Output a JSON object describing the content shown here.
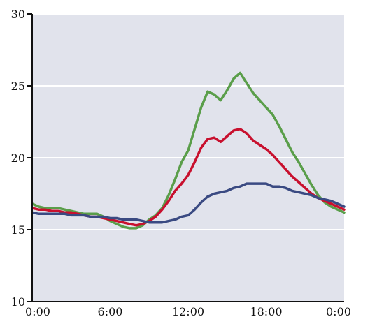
{
  "chart_data": {
    "type": "line",
    "title": "",
    "xlabel": "",
    "ylabel": "",
    "x_ticks": [
      "0:00",
      "6:00",
      "12:00",
      "18:00",
      "0:00"
    ],
    "y_ticks": [
      "10",
      "15",
      "20",
      "25",
      "30"
    ],
    "xlim": [
      0,
      24
    ],
    "ylim": [
      10,
      30
    ],
    "grid": true,
    "legend": "none",
    "plot_background": "#e1e3ec",
    "grid_color": "#ffffff",
    "series": [
      {
        "color": "#5a9e4a",
        "x": [
          0,
          0.5,
          1,
          1.5,
          2,
          2.5,
          3,
          3.5,
          4,
          4.5,
          5,
          5.5,
          6,
          6.5,
          7,
          7.5,
          8,
          8.5,
          9,
          9.5,
          10,
          10.5,
          11,
          11.5,
          12,
          12.5,
          13,
          13.5,
          14,
          14.5,
          15,
          15.5,
          16,
          16.5,
          17,
          17.5,
          18,
          18.5,
          19,
          19.5,
          20,
          20.5,
          21,
          21.5,
          22,
          22.5,
          23,
          23.5,
          24
        ],
        "y": [
          16.8,
          16.6,
          16.5,
          16.5,
          16.5,
          16.4,
          16.3,
          16.2,
          16.1,
          16.1,
          16.1,
          15.9,
          15.6,
          15.4,
          15.2,
          15.1,
          15.1,
          15.3,
          15.7,
          16.0,
          16.5,
          17.4,
          18.5,
          19.7,
          20.5,
          22.0,
          23.5,
          24.6,
          24.4,
          24.0,
          24.7,
          25.5,
          25.9,
          25.2,
          24.5,
          24.0,
          23.5,
          23.0,
          22.2,
          21.3,
          20.4,
          19.7,
          18.9,
          18.1,
          17.4,
          16.9,
          16.6,
          16.4,
          16.2
        ]
      },
      {
        "color": "#c8102e",
        "x": [
          0,
          0.5,
          1,
          1.5,
          2,
          2.5,
          3,
          3.5,
          4,
          4.5,
          5,
          5.5,
          6,
          6.5,
          7,
          7.5,
          8,
          8.5,
          9,
          9.5,
          10,
          10.5,
          11,
          11.5,
          12,
          12.5,
          13,
          13.5,
          14,
          14.5,
          15,
          15.5,
          16,
          16.5,
          17,
          17.5,
          18,
          18.5,
          19,
          19.5,
          20,
          20.5,
          21,
          21.5,
          22,
          22.5,
          23,
          23.5,
          24
        ],
        "y": [
          16.5,
          16.4,
          16.4,
          16.3,
          16.3,
          16.2,
          16.2,
          16.1,
          16.0,
          15.9,
          15.9,
          15.8,
          15.7,
          15.6,
          15.5,
          15.4,
          15.3,
          15.4,
          15.6,
          15.9,
          16.4,
          17.0,
          17.7,
          18.2,
          18.8,
          19.7,
          20.7,
          21.3,
          21.4,
          21.1,
          21.5,
          21.9,
          22.0,
          21.7,
          21.2,
          20.9,
          20.6,
          20.2,
          19.7,
          19.2,
          18.7,
          18.3,
          17.9,
          17.5,
          17.2,
          17.0,
          16.8,
          16.6,
          16.4
        ]
      },
      {
        "color": "#3a4a82",
        "x": [
          0,
          0.5,
          1,
          1.5,
          2,
          2.5,
          3,
          3.5,
          4,
          4.5,
          5,
          5.5,
          6,
          6.5,
          7,
          7.5,
          8,
          8.5,
          9,
          9.5,
          10,
          10.5,
          11,
          11.5,
          12,
          12.5,
          13,
          13.5,
          14,
          14.5,
          15,
          15.5,
          16,
          16.5,
          17,
          17.5,
          18,
          18.5,
          19,
          19.5,
          20,
          20.5,
          21,
          21.5,
          22,
          22.5,
          23,
          23.5,
          24
        ],
        "y": [
          16.2,
          16.1,
          16.1,
          16.1,
          16.1,
          16.1,
          16.0,
          16.0,
          16.0,
          15.9,
          15.9,
          15.9,
          15.8,
          15.8,
          15.7,
          15.7,
          15.7,
          15.6,
          15.5,
          15.5,
          15.5,
          15.6,
          15.7,
          15.9,
          16.0,
          16.4,
          16.9,
          17.3,
          17.5,
          17.6,
          17.7,
          17.9,
          18.0,
          18.2,
          18.2,
          18.2,
          18.2,
          18.0,
          18.0,
          17.9,
          17.7,
          17.6,
          17.5,
          17.4,
          17.2,
          17.1,
          17.0,
          16.8,
          16.6
        ]
      }
    ]
  }
}
